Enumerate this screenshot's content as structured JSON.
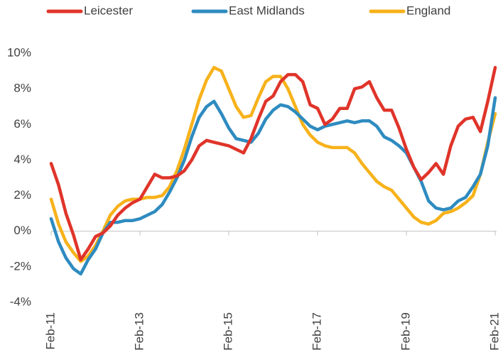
{
  "chart_data": {
    "type": "line",
    "categories": [
      "Feb-11",
      null,
      null,
      null,
      null,
      null,
      null,
      null,
      null,
      null,
      null,
      null,
      "Feb-13",
      null,
      null,
      null,
      null,
      null,
      null,
      null,
      null,
      null,
      null,
      null,
      "Feb-15",
      null,
      null,
      null,
      null,
      null,
      null,
      null,
      null,
      null,
      null,
      null,
      "Feb-17",
      null,
      null,
      null,
      null,
      null,
      null,
      null,
      null,
      null,
      null,
      null,
      "Feb-19",
      null,
      null,
      null,
      null,
      null,
      null,
      null,
      null,
      null,
      null,
      null,
      "Feb-21"
    ],
    "series": [
      {
        "name": "Leicester",
        "color": "#e0342a",
        "values": [
          3.8,
          2.6,
          1.0,
          -0.2,
          -1.6,
          -1.0,
          -0.3,
          -0.1,
          0.3,
          0.9,
          1.3,
          1.6,
          1.8,
          2.5,
          3.2,
          3.0,
          3.0,
          3.1,
          3.4,
          4.0,
          4.8,
          5.1,
          5.0,
          4.9,
          4.8,
          4.6,
          4.4,
          5.2,
          6.3,
          7.3,
          7.6,
          8.4,
          8.8,
          8.8,
          8.4,
          7.1,
          6.9,
          6.0,
          6.3,
          6.9,
          6.9,
          8.0,
          8.1,
          8.4,
          7.5,
          6.8,
          6.8,
          5.8,
          4.6,
          3.6,
          2.9,
          3.3,
          3.8,
          3.2,
          4.8,
          5.9,
          6.3,
          6.4,
          5.6,
          7.3,
          9.2
        ]
      },
      {
        "name": "East Midlands",
        "color": "#2e8bc0",
        "values": [
          0.7,
          -0.6,
          -1.5,
          -2.1,
          -2.4,
          -1.6,
          -1.0,
          -0.1,
          0.5,
          0.5,
          0.6,
          0.6,
          0.7,
          0.9,
          1.1,
          1.5,
          2.2,
          3.0,
          4.0,
          5.3,
          6.4,
          7.0,
          7.3,
          6.6,
          5.8,
          5.2,
          5.1,
          5.0,
          5.5,
          6.3,
          6.8,
          7.1,
          7.0,
          6.7,
          6.3,
          5.9,
          5.7,
          5.9,
          6.0,
          6.1,
          6.2,
          6.1,
          6.2,
          6.2,
          5.9,
          5.3,
          5.1,
          4.8,
          4.4,
          3.6,
          2.8,
          1.7,
          1.3,
          1.2,
          1.3,
          1.7,
          1.9,
          2.5,
          3.2,
          4.8,
          7.5
        ]
      },
      {
        "name": "England",
        "color": "#f7b21b",
        "values": [
          1.8,
          0.4,
          -0.6,
          -1.2,
          -1.7,
          -1.4,
          -0.8,
          0.0,
          0.9,
          1.4,
          1.7,
          1.8,
          1.8,
          1.9,
          1.9,
          2.0,
          2.5,
          3.4,
          4.6,
          6.0,
          7.4,
          8.5,
          9.2,
          9.0,
          8.0,
          7.0,
          6.4,
          6.5,
          7.5,
          8.4,
          8.7,
          8.7,
          8.0,
          7.0,
          6.0,
          5.4,
          5.0,
          4.8,
          4.7,
          4.7,
          4.7,
          4.4,
          3.8,
          3.3,
          2.8,
          2.5,
          2.3,
          1.8,
          1.3,
          0.8,
          0.5,
          0.4,
          0.6,
          1.0,
          1.1,
          1.3,
          1.6,
          2.0,
          3.2,
          5.0,
          6.6
        ]
      }
    ],
    "ylim": [
      -4,
      10
    ],
    "yticks": [
      {
        "value": -4,
        "label": "-4%"
      },
      {
        "value": -2,
        "label": "-2%"
      },
      {
        "value": 0,
        "label": "0%"
      },
      {
        "value": 2,
        "label": "2%"
      },
      {
        "value": 4,
        "label": "4%"
      },
      {
        "value": 6,
        "label": "6%"
      },
      {
        "value": 8,
        "label": "8%"
      },
      {
        "value": 10,
        "label": "10%"
      }
    ],
    "grid": false
  }
}
